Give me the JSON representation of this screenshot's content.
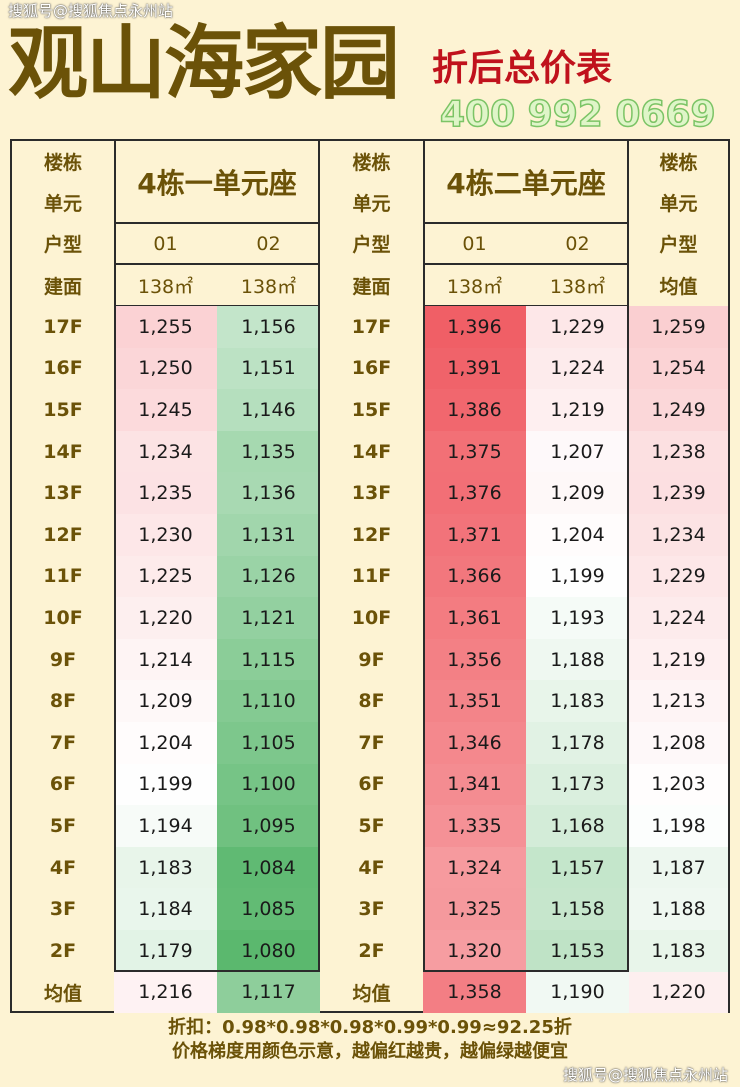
{
  "watermark_top": "搜狐号@搜狐焦点永州站",
  "watermark_bottom": "搜狐号@搜狐焦点永州站",
  "phone_watermark": "400 992 0669",
  "title": "观山海家园",
  "subtitle": "折后总价表",
  "labels": {
    "building": "楼栋",
    "unit": "单元",
    "type": "户型",
    "area": "建面",
    "avg": "均值"
  },
  "groups": [
    {
      "name": "4栋一单元座",
      "types": [
        "01",
        "02"
      ],
      "areas": [
        "138㎡",
        "138㎡"
      ]
    },
    {
      "name": "4栋二单元座",
      "types": [
        "01",
        "02"
      ],
      "areas": [
        "138㎡",
        "138㎡"
      ]
    }
  ],
  "avg_header": "均值",
  "rows": [
    {
      "floor": "17F",
      "v": [
        "1,255",
        "1,156",
        "1,396",
        "1,229",
        "1,259"
      ]
    },
    {
      "floor": "16F",
      "v": [
        "1,250",
        "1,151",
        "1,391",
        "1,224",
        "1,254"
      ]
    },
    {
      "floor": "15F",
      "v": [
        "1,245",
        "1,146",
        "1,386",
        "1,219",
        "1,249"
      ]
    },
    {
      "floor": "14F",
      "v": [
        "1,234",
        "1,135",
        "1,375",
        "1,207",
        "1,238"
      ]
    },
    {
      "floor": "13F",
      "v": [
        "1,235",
        "1,136",
        "1,376",
        "1,209",
        "1,239"
      ]
    },
    {
      "floor": "12F",
      "v": [
        "1,230",
        "1,131",
        "1,371",
        "1,204",
        "1,234"
      ]
    },
    {
      "floor": "11F",
      "v": [
        "1,225",
        "1,126",
        "1,366",
        "1,199",
        "1,229"
      ]
    },
    {
      "floor": "10F",
      "v": [
        "1,220",
        "1,121",
        "1,361",
        "1,193",
        "1,224"
      ]
    },
    {
      "floor": "9F",
      "v": [
        "1,214",
        "1,115",
        "1,356",
        "1,188",
        "1,219"
      ]
    },
    {
      "floor": "8F",
      "v": [
        "1,209",
        "1,110",
        "1,351",
        "1,183",
        "1,213"
      ]
    },
    {
      "floor": "7F",
      "v": [
        "1,204",
        "1,105",
        "1,346",
        "1,178",
        "1,208"
      ]
    },
    {
      "floor": "6F",
      "v": [
        "1,199",
        "1,100",
        "1,341",
        "1,173",
        "1,203"
      ]
    },
    {
      "floor": "5F",
      "v": [
        "1,194",
        "1,095",
        "1,335",
        "1,168",
        "1,198"
      ]
    },
    {
      "floor": "4F",
      "v": [
        "1,183",
        "1,084",
        "1,324",
        "1,157",
        "1,187"
      ]
    },
    {
      "floor": "3F",
      "v": [
        "1,184",
        "1,085",
        "1,325",
        "1,158",
        "1,188"
      ]
    },
    {
      "floor": "2F",
      "v": [
        "1,179",
        "1,080",
        "1,320",
        "1,153",
        "1,183"
      ]
    }
  ],
  "avg_row": {
    "label": "均值",
    "v": [
      "1,216",
      "1,117",
      "1,358",
      "1,190",
      "1,220"
    ]
  },
  "color_scale": {
    "low": "#5bb86e",
    "mid": "#ffffff",
    "high": "#f05f66",
    "mid_value": 1200
  },
  "footer": {
    "discount": "折扣：0.98*0.98*0.98*0.99*0.99≈92.25折",
    "note": "价格梯度用颜色示意，越偏红越贵，越偏绿越便宜"
  }
}
